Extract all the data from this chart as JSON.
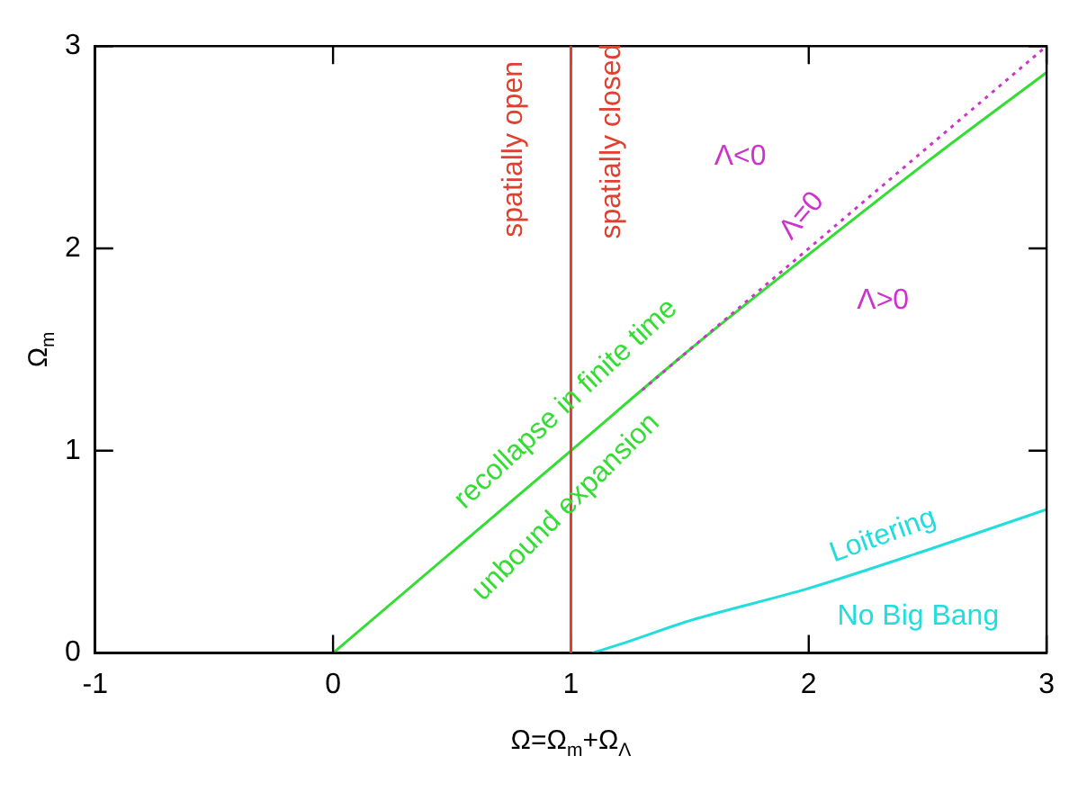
{
  "chart_data": {
    "type": "line",
    "xlabel": "Ω=Ω$_{m}$+Ω$_{Λ}$",
    "ylabel": "Ω$_{m}$",
    "xlim": [
      -1,
      3
    ],
    "xticks": [
      -1,
      0,
      1,
      2,
      3
    ],
    "ylim": [
      0,
      3
    ],
    "yticks": [
      0,
      1,
      2,
      3
    ],
    "grid": false,
    "legend": false,
    "marker": "none",
    "series": [
      {
        "color": "#33dd33",
        "x": [
          0,
          1,
          1.5,
          2,
          2.5,
          3
        ],
        "values": [
          0,
          1,
          1.5,
          1.97,
          2.43,
          2.87
        ]
      },
      {
        "color": "#cc33cc",
        "line_style": "dotted",
        "x": [
          1.3,
          3
        ],
        "values": [
          1.3,
          3
        ]
      },
      {
        "color": "#22dddd",
        "x": [
          1.09,
          1.25,
          1.5,
          2,
          2.5,
          3
        ],
        "values": [
          0,
          0.06,
          0.16,
          0.32,
          0.51,
          0.71
        ]
      }
    ],
    "ref_lines": [
      {
        "axis": "x",
        "value": 1,
        "color": "#e04030"
      }
    ],
    "annotations": [
      "spatially open",
      "spatially closed",
      "Λ<0",
      "Λ=0",
      "Λ>0",
      "recollapse in finite time",
      "unbound expansion",
      "Loitering",
      "No Big Bang"
    ]
  }
}
